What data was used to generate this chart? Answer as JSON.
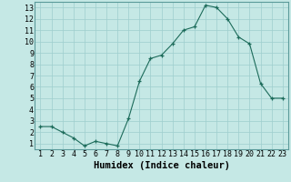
{
  "x": [
    1,
    2,
    3,
    4,
    5,
    6,
    7,
    8,
    9,
    10,
    11,
    12,
    13,
    14,
    15,
    16,
    17,
    18,
    19,
    20,
    21,
    22,
    23
  ],
  "y": [
    2.5,
    2.5,
    2.0,
    1.5,
    0.8,
    1.2,
    1.0,
    0.8,
    3.2,
    6.5,
    8.5,
    8.8,
    9.8,
    11.0,
    11.3,
    13.2,
    13.0,
    12.0,
    10.4,
    9.8,
    6.3,
    5.0,
    5.0
  ],
  "xlabel": "Humidex (Indice chaleur)",
  "xlim": [
    0.5,
    23.5
  ],
  "ylim": [
    0.5,
    13.5
  ],
  "xticks": [
    1,
    2,
    3,
    4,
    5,
    6,
    7,
    8,
    9,
    10,
    11,
    12,
    13,
    14,
    15,
    16,
    17,
    18,
    19,
    20,
    21,
    22,
    23
  ],
  "yticks": [
    1,
    2,
    3,
    4,
    5,
    6,
    7,
    8,
    9,
    10,
    11,
    12,
    13
  ],
  "line_color": "#1c6b5a",
  "bg_color": "#c5e8e5",
  "grid_color": "#9ecece",
  "xlabel_fontsize": 7.5,
  "tick_fontsize": 6.0
}
